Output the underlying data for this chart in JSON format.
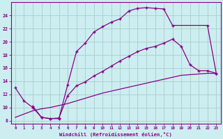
{
  "bg_color": "#cceef0",
  "grid_color": "#aacccc",
  "line_color": "#880088",
  "xlabel": "Windchill (Refroidissement éolien,°C)",
  "xlim": [
    -0.5,
    23.5
  ],
  "ylim": [
    7.5,
    26.0
  ],
  "xticks": [
    0,
    1,
    2,
    3,
    4,
    5,
    6,
    7,
    8,
    9,
    10,
    11,
    12,
    13,
    14,
    15,
    16,
    17,
    18,
    19,
    20,
    21,
    22,
    23
  ],
  "yticks": [
    8,
    10,
    12,
    14,
    16,
    18,
    20,
    22,
    24
  ],
  "curve1_x": [
    0,
    1,
    2,
    3,
    4,
    5,
    6,
    7,
    8,
    9,
    10,
    11,
    12,
    13,
    14,
    15,
    16,
    17,
    18,
    22,
    23
  ],
  "curve1_y": [
    13,
    11,
    10,
    8.5,
    8.3,
    8.3,
    13.5,
    18.5,
    19.8,
    21.5,
    22.3,
    23.0,
    23.5,
    24.7,
    25.1,
    25.2,
    25.1,
    25.0,
    22.5,
    22.5,
    15.2
  ],
  "curve2_x": [
    2,
    3,
    4,
    5,
    6,
    7,
    8,
    9,
    10,
    11,
    12,
    13,
    14,
    15,
    16,
    17,
    18,
    19,
    20,
    21,
    22,
    23
  ],
  "curve2_y": [
    10.2,
    8.5,
    8.3,
    8.4,
    11.8,
    13.3,
    13.9,
    14.8,
    15.5,
    16.3,
    17.1,
    17.8,
    18.5,
    19.0,
    19.3,
    19.8,
    20.4,
    19.3,
    16.5,
    15.6,
    15.6,
    15.2
  ],
  "curve3_x": [
    0,
    1,
    2,
    3,
    4,
    5,
    6,
    7,
    8,
    9,
    10,
    11,
    12,
    13,
    14,
    15,
    16,
    17,
    18,
    19,
    20,
    21,
    22,
    23
  ],
  "curve3_y": [
    8.5,
    9.0,
    9.5,
    9.8,
    10.0,
    10.3,
    10.6,
    11.0,
    11.4,
    11.8,
    12.2,
    12.5,
    12.8,
    13.1,
    13.4,
    13.7,
    14.0,
    14.3,
    14.6,
    14.9,
    15.0,
    15.1,
    15.2,
    15.2
  ]
}
